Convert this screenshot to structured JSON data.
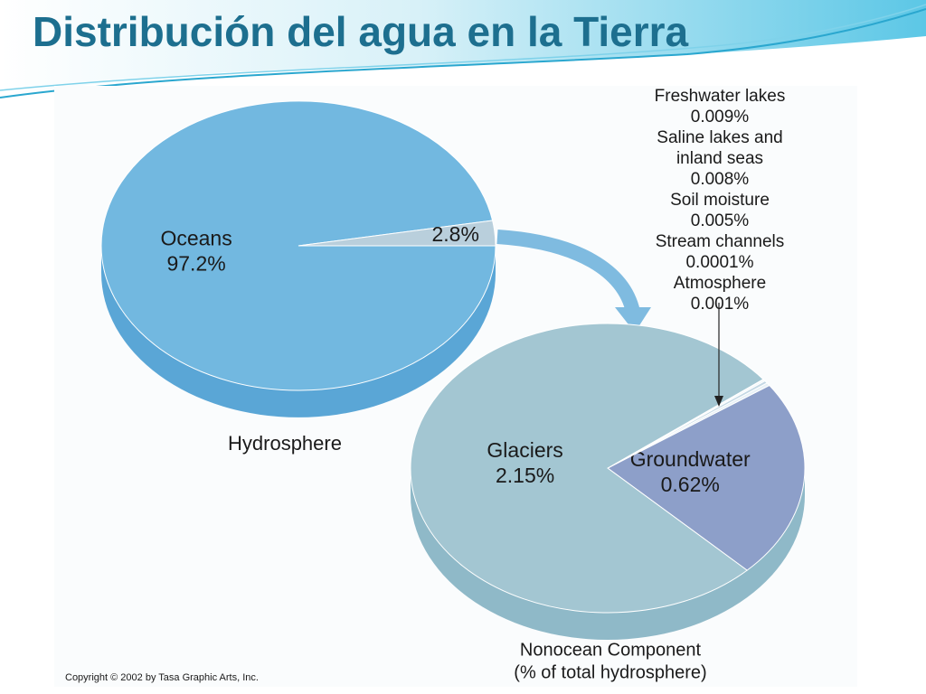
{
  "title": "Distribución del agua en la Tierra",
  "copyright": "Copyright © 2002 by Tasa Graphic Arts, Inc.",
  "chart_data": [
    {
      "type": "pie",
      "title": "Hydrosphere",
      "categories": [
        "Oceans",
        null
      ],
      "values": [
        97.2,
        2.8
      ],
      "value_labels": [
        "97.2%",
        "2.8%"
      ],
      "colors": [
        "#72b8e0",
        "#b9cfdc"
      ]
    },
    {
      "type": "pie",
      "title": "Nonocean Component",
      "subtitle": "(% of total hydrosphere)",
      "categories": [
        "Groundwater",
        "Freshwater lakes",
        "Saline lakes and inland seas",
        "Soil moisture",
        "Stream channels",
        "Atmosphere",
        "Glaciers"
      ],
      "values": [
        0.62,
        0.009,
        0.008,
        0.005,
        0.0001,
        0.001,
        2.15
      ],
      "value_labels": [
        "0.62%",
        "0.009%",
        "0.008%",
        "0.005%",
        "0.0001%",
        "0.001%",
        "2.15%"
      ],
      "colors": [
        "#8d9fc9",
        "#e8f1f6",
        "#c4d8e4",
        "#eef5f9",
        "#c9dbe6",
        "#f2f7fa",
        "#a3c6d2"
      ]
    }
  ]
}
